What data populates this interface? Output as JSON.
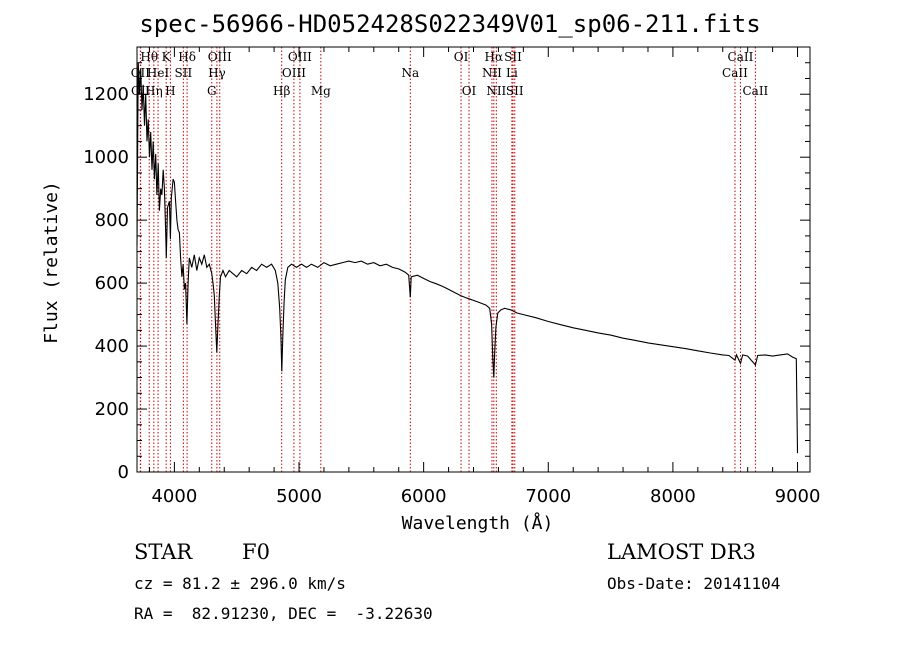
{
  "footer": {
    "object_class": "STAR",
    "subclass": "F0",
    "survey": "LAMOST DR3",
    "cz": "cz = 81.2 ± 296.0 km/s",
    "obs_date": "Obs-Date: 20141104",
    "radec": "RA =  82.91230, DEC =  -3.22630"
  },
  "chart_data": {
    "type": "line",
    "title": "spec-56966-HD052428S022349V01_sp06-211.fits",
    "xlabel": "Wavelength (Å)",
    "ylabel": "Flux (relative)",
    "xlim": [
      3700,
      9100
    ],
    "ylim": [
      0,
      1350
    ],
    "xticks": [
      4000,
      5000,
      6000,
      7000,
      8000,
      9000
    ],
    "yticks": [
      0,
      200,
      400,
      600,
      800,
      1000,
      1200
    ],
    "line_color": "#000000",
    "marker_color": "#cc0000",
    "series": [
      {
        "name": "flux",
        "points": [
          [
            3700,
            720
          ],
          [
            3710,
            1300
          ],
          [
            3720,
            1200
          ],
          [
            3730,
            1280
          ],
          [
            3740,
            1150
          ],
          [
            3750,
            1230
          ],
          [
            3760,
            1100
          ],
          [
            3770,
            1200
          ],
          [
            3780,
            1050
          ],
          [
            3790,
            1120
          ],
          [
            3800,
            1000
          ],
          [
            3810,
            1080
          ],
          [
            3820,
            960
          ],
          [
            3830,
            1050
          ],
          [
            3840,
            930
          ],
          [
            3850,
            1010
          ],
          [
            3860,
            880
          ],
          [
            3870,
            980
          ],
          [
            3880,
            830
          ],
          [
            3890,
            900
          ],
          [
            3900,
            880
          ],
          [
            3910,
            960
          ],
          [
            3920,
            900
          ],
          [
            3930,
            760
          ],
          [
            3935,
            680
          ],
          [
            3945,
            840
          ],
          [
            3960,
            860
          ],
          [
            3968,
            740
          ],
          [
            3975,
            870
          ],
          [
            3990,
            930
          ],
          [
            4000,
            920
          ],
          [
            4010,
            860
          ],
          [
            4020,
            800
          ],
          [
            4030,
            770
          ],
          [
            4040,
            760
          ],
          [
            4050,
            680
          ],
          [
            4060,
            620
          ],
          [
            4070,
            660
          ],
          [
            4080,
            580
          ],
          [
            4090,
            600
          ],
          [
            4100,
            470
          ],
          [
            4110,
            600
          ],
          [
            4120,
            680
          ],
          [
            4140,
            650
          ],
          [
            4160,
            690
          ],
          [
            4180,
            640
          ],
          [
            4200,
            680
          ],
          [
            4220,
            660
          ],
          [
            4240,
            690
          ],
          [
            4260,
            650
          ],
          [
            4280,
            660
          ],
          [
            4300,
            630
          ],
          [
            4310,
            600
          ],
          [
            4320,
            560
          ],
          [
            4330,
            470
          ],
          [
            4340,
            380
          ],
          [
            4350,
            470
          ],
          [
            4360,
            560
          ],
          [
            4370,
            620
          ],
          [
            4390,
            640
          ],
          [
            4410,
            620
          ],
          [
            4440,
            640
          ],
          [
            4470,
            630
          ],
          [
            4500,
            620
          ],
          [
            4540,
            640
          ],
          [
            4580,
            630
          ],
          [
            4620,
            650
          ],
          [
            4660,
            640
          ],
          [
            4700,
            660
          ],
          [
            4740,
            650
          ],
          [
            4780,
            660
          ],
          [
            4810,
            640
          ],
          [
            4830,
            600
          ],
          [
            4845,
            520
          ],
          [
            4855,
            430
          ],
          [
            4862,
            320
          ],
          [
            4870,
            430
          ],
          [
            4880,
            540
          ],
          [
            4890,
            610
          ],
          [
            4910,
            650
          ],
          [
            4940,
            660
          ],
          [
            4980,
            650
          ],
          [
            5020,
            660
          ],
          [
            5060,
            650
          ],
          [
            5100,
            660
          ],
          [
            5150,
            650
          ],
          [
            5200,
            665
          ],
          [
            5250,
            655
          ],
          [
            5300,
            660
          ],
          [
            5350,
            665
          ],
          [
            5400,
            670
          ],
          [
            5450,
            665
          ],
          [
            5500,
            670
          ],
          [
            5550,
            660
          ],
          [
            5600,
            665
          ],
          [
            5650,
            655
          ],
          [
            5700,
            660
          ],
          [
            5750,
            650
          ],
          [
            5800,
            645
          ],
          [
            5850,
            635
          ],
          [
            5880,
            625
          ],
          [
            5893,
            555
          ],
          [
            5900,
            620
          ],
          [
            5950,
            625
          ],
          [
            6000,
            615
          ],
          [
            6050,
            605
          ],
          [
            6100,
            598
          ],
          [
            6150,
            590
          ],
          [
            6200,
            580
          ],
          [
            6250,
            570
          ],
          [
            6300,
            560
          ],
          [
            6350,
            552
          ],
          [
            6400,
            545
          ],
          [
            6450,
            538
          ],
          [
            6500,
            530
          ],
          [
            6530,
            520
          ],
          [
            6545,
            470
          ],
          [
            6555,
            360
          ],
          [
            6563,
            300
          ],
          [
            6570,
            380
          ],
          [
            6580,
            460
          ],
          [
            6595,
            505
          ],
          [
            6620,
            515
          ],
          [
            6650,
            520
          ],
          [
            6700,
            515
          ],
          [
            6750,
            505
          ],
          [
            6800,
            500
          ],
          [
            6900,
            490
          ],
          [
            7000,
            478
          ],
          [
            7100,
            468
          ],
          [
            7200,
            458
          ],
          [
            7300,
            450
          ],
          [
            7400,
            442
          ],
          [
            7500,
            435
          ],
          [
            7600,
            425
          ],
          [
            7700,
            418
          ],
          [
            7800,
            410
          ],
          [
            7900,
            404
          ],
          [
            8000,
            398
          ],
          [
            8100,
            392
          ],
          [
            8200,
            385
          ],
          [
            8300,
            378
          ],
          [
            8400,
            372
          ],
          [
            8450,
            370
          ],
          [
            8498,
            355
          ],
          [
            8510,
            372
          ],
          [
            8542,
            345
          ],
          [
            8560,
            372
          ],
          [
            8600,
            368
          ],
          [
            8662,
            340
          ],
          [
            8680,
            370
          ],
          [
            8740,
            372
          ],
          [
            8800,
            368
          ],
          [
            8860,
            372
          ],
          [
            8920,
            375
          ],
          [
            8960,
            365
          ],
          [
            8990,
            360
          ],
          [
            9000,
            60
          ]
        ]
      }
    ],
    "line_markers": [
      {
        "wavelength": 3727,
        "label": "OII",
        "row": 2
      },
      {
        "wavelength": 3729,
        "label": "OII",
        "row": 3
      },
      {
        "wavelength": 3798,
        "label": "Hθ",
        "row": 1
      },
      {
        "wavelength": 3835,
        "label": "Hη",
        "row": 3
      },
      {
        "wavelength": 3869,
        "label": "HeI",
        "row": 2
      },
      {
        "wavelength": 3934,
        "label": "K",
        "row": 1
      },
      {
        "wavelength": 3968,
        "label": "H",
        "row": 3
      },
      {
        "wavelength": 4072,
        "label": "SII",
        "row": 2
      },
      {
        "wavelength": 4102,
        "label": "Hδ",
        "row": 1
      },
      {
        "wavelength": 4300,
        "label": "G",
        "row": 3
      },
      {
        "wavelength": 4341,
        "label": "Hγ",
        "row": 2
      },
      {
        "wavelength": 4364,
        "label": "OIII",
        "row": 1
      },
      {
        "wavelength": 4861,
        "label": "Hβ",
        "row": 3
      },
      {
        "wavelength": 4959,
        "label": "OIII",
        "row": 2
      },
      {
        "wavelength": 5007,
        "label": "OIII",
        "row": 1
      },
      {
        "wavelength": 5175,
        "label": "Mg",
        "row": 3
      },
      {
        "wavelength": 5893,
        "label": "Na",
        "row": 2
      },
      {
        "wavelength": 6300,
        "label": "OI",
        "row": 1
      },
      {
        "wavelength": 6364,
        "label": "OI",
        "row": 3
      },
      {
        "wavelength": 6548,
        "label": "NII",
        "row": 2
      },
      {
        "wavelength": 6563,
        "label": "Hα",
        "row": 1
      },
      {
        "wavelength": 6583,
        "label": "NII",
        "row": 3
      },
      {
        "wavelength": 6708,
        "label": "Li",
        "row": 2
      },
      {
        "wavelength": 6717,
        "label": "SII",
        "row": 1
      },
      {
        "wavelength": 6731,
        "label": "SII",
        "row": 3
      },
      {
        "wavelength": 8498,
        "label": "CaII",
        "row": 2
      },
      {
        "wavelength": 8542,
        "label": "CaII",
        "row": 1
      },
      {
        "wavelength": 8662,
        "label": "CaII",
        "row": 3
      }
    ]
  }
}
